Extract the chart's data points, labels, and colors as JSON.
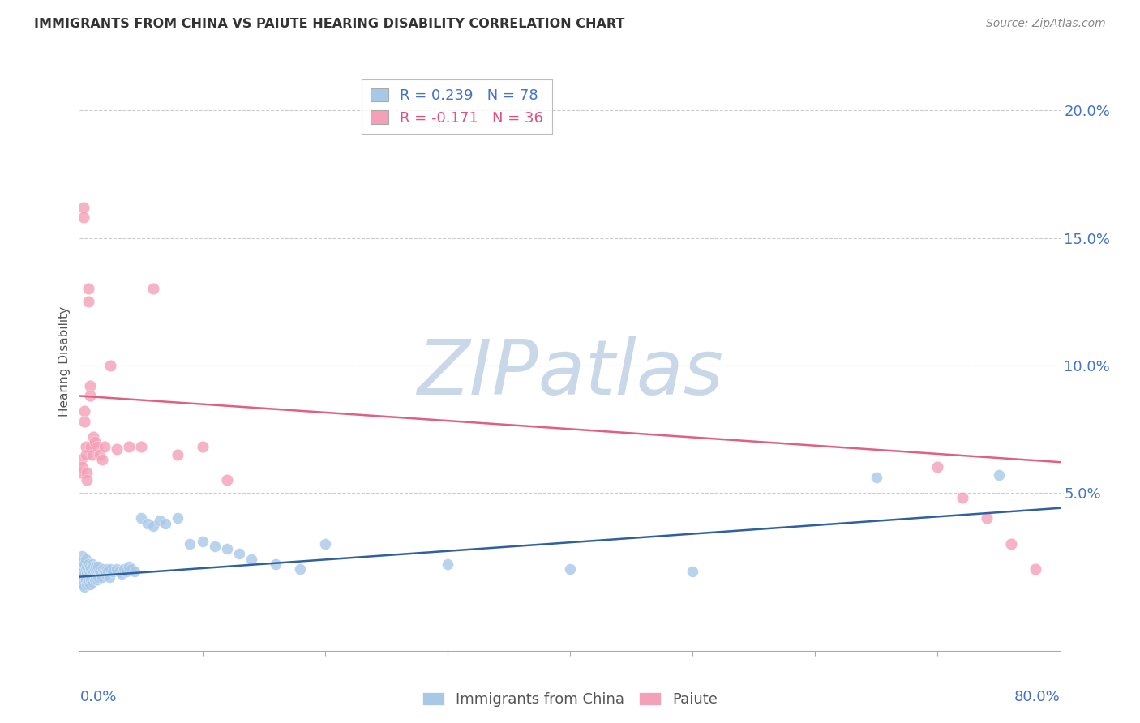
{
  "title": "IMMIGRANTS FROM CHINA VS PAIUTE HEARING DISABILITY CORRELATION CHART",
  "source": "Source: ZipAtlas.com",
  "ylabel": "Hearing Disability",
  "yticks": [
    0.0,
    0.05,
    0.1,
    0.15,
    0.2
  ],
  "ytick_labels": [
    "",
    "5.0%",
    "10.0%",
    "15.0%",
    "20.0%"
  ],
  "xlim": [
    0.0,
    0.8
  ],
  "ylim": [
    -0.012,
    0.215
  ],
  "blue_color": "#a8c8e8",
  "pink_color": "#f4a0b8",
  "blue_line_color": "#3060a0",
  "pink_line_color": "#e06080",
  "watermark_color": "#c8d8e8",
  "blue_points_x": [
    0.001,
    0.001,
    0.002,
    0.002,
    0.002,
    0.003,
    0.003,
    0.003,
    0.003,
    0.004,
    0.004,
    0.004,
    0.005,
    0.005,
    0.005,
    0.006,
    0.006,
    0.006,
    0.007,
    0.007,
    0.007,
    0.008,
    0.008,
    0.008,
    0.009,
    0.009,
    0.01,
    0.01,
    0.01,
    0.011,
    0.011,
    0.012,
    0.012,
    0.013,
    0.013,
    0.014,
    0.014,
    0.015,
    0.015,
    0.016,
    0.017,
    0.018,
    0.019,
    0.02,
    0.021,
    0.022,
    0.023,
    0.024,
    0.025,
    0.027,
    0.03,
    0.032,
    0.034,
    0.036,
    0.038,
    0.04,
    0.042,
    0.045,
    0.05,
    0.055,
    0.06,
    0.065,
    0.07,
    0.08,
    0.09,
    0.1,
    0.11,
    0.12,
    0.13,
    0.14,
    0.16,
    0.18,
    0.2,
    0.3,
    0.4,
    0.5,
    0.65,
    0.75
  ],
  "blue_points_y": [
    0.022,
    0.018,
    0.025,
    0.02,
    0.015,
    0.023,
    0.019,
    0.017,
    0.014,
    0.022,
    0.018,
    0.013,
    0.024,
    0.02,
    0.016,
    0.021,
    0.018,
    0.014,
    0.022,
    0.019,
    0.015,
    0.021,
    0.018,
    0.014,
    0.02,
    0.016,
    0.022,
    0.019,
    0.015,
    0.021,
    0.017,
    0.02,
    0.016,
    0.021,
    0.017,
    0.02,
    0.016,
    0.021,
    0.017,
    0.019,
    0.018,
    0.017,
    0.02,
    0.019,
    0.018,
    0.02,
    0.019,
    0.017,
    0.02,
    0.019,
    0.02,
    0.019,
    0.018,
    0.02,
    0.019,
    0.021,
    0.02,
    0.019,
    0.04,
    0.038,
    0.037,
    0.039,
    0.038,
    0.04,
    0.03,
    0.031,
    0.029,
    0.028,
    0.026,
    0.024,
    0.022,
    0.02,
    0.03,
    0.022,
    0.02,
    0.019,
    0.056,
    0.057
  ],
  "pink_points_x": [
    0.001,
    0.001,
    0.002,
    0.003,
    0.003,
    0.004,
    0.004,
    0.005,
    0.005,
    0.006,
    0.006,
    0.007,
    0.007,
    0.008,
    0.008,
    0.009,
    0.01,
    0.011,
    0.012,
    0.014,
    0.016,
    0.018,
    0.02,
    0.025,
    0.03,
    0.04,
    0.05,
    0.06,
    0.08,
    0.1,
    0.12,
    0.7,
    0.72,
    0.74,
    0.76,
    0.78
  ],
  "pink_points_y": [
    0.063,
    0.058,
    0.06,
    0.162,
    0.158,
    0.082,
    0.078,
    0.068,
    0.065,
    0.058,
    0.055,
    0.13,
    0.125,
    0.092,
    0.088,
    0.068,
    0.065,
    0.072,
    0.07,
    0.068,
    0.065,
    0.063,
    0.068,
    0.1,
    0.067,
    0.068,
    0.068,
    0.13,
    0.065,
    0.068,
    0.055,
    0.06,
    0.048,
    0.04,
    0.03,
    0.02
  ],
  "blue_trend_y_start": 0.017,
  "blue_trend_y_end": 0.044,
  "pink_trend_y_start": 0.088,
  "pink_trend_y_end": 0.062
}
